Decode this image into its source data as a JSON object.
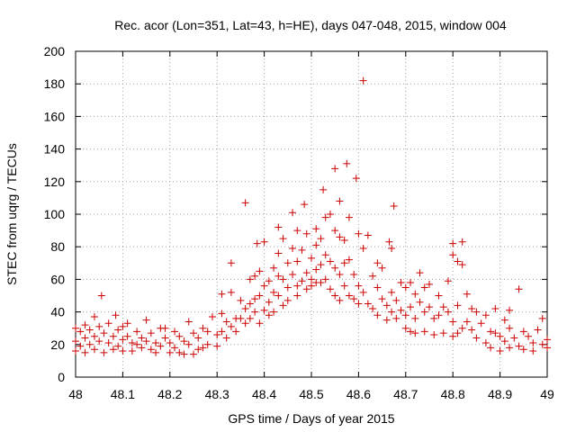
{
  "chart_data": {
    "type": "scatter",
    "title": "Rec. acor (Lon=351, Lat=43, h=HE), days 047-048, 2015, window 004",
    "xlabel": "GPS time / Days of year 2015",
    "ylabel": "STEC from uqrg / TECUs",
    "xlim": [
      48,
      49
    ],
    "ylim": [
      0,
      200
    ],
    "xticks": [
      48,
      48.1,
      48.2,
      48.3,
      48.4,
      48.5,
      48.6,
      48.7,
      48.8,
      48.9,
      49
    ],
    "xtick_labels": [
      "48",
      "48.1",
      "48.2",
      "48.3",
      "48.4",
      "48.5",
      "48.6",
      "48.7",
      "48.8",
      "48.9",
      "49"
    ],
    "yticks": [
      0,
      20,
      40,
      60,
      80,
      100,
      120,
      140,
      160,
      180,
      200
    ],
    "ytick_labels": [
      "0",
      "20",
      "40",
      "60",
      "80",
      "100",
      "120",
      "140",
      "160",
      "180",
      "200"
    ],
    "marker": "+",
    "color": "#cc0000",
    "series": [
      {
        "name": "STEC",
        "points": [
          [
            48.0,
            30
          ],
          [
            48.0,
            22
          ],
          [
            48.0,
            16
          ],
          [
            48.01,
            28
          ],
          [
            48.01,
            19
          ],
          [
            48.02,
            32
          ],
          [
            48.02,
            24
          ],
          [
            48.02,
            15
          ],
          [
            48.03,
            29
          ],
          [
            48.03,
            20
          ],
          [
            48.04,
            37
          ],
          [
            48.04,
            25
          ],
          [
            48.04,
            17
          ],
          [
            48.05,
            31
          ],
          [
            48.05,
            22
          ],
          [
            48.055,
            50
          ],
          [
            48.06,
            27
          ],
          [
            48.06,
            15
          ],
          [
            48.07,
            33
          ],
          [
            48.07,
            21
          ],
          [
            48.08,
            25
          ],
          [
            48.08,
            17
          ],
          [
            48.085,
            38
          ],
          [
            48.09,
            29
          ],
          [
            48.09,
            19
          ],
          [
            48.1,
            31
          ],
          [
            48.1,
            23
          ],
          [
            48.1,
            16
          ],
          [
            48.11,
            33
          ],
          [
            48.11,
            25
          ],
          [
            48.12,
            21
          ],
          [
            48.12,
            16
          ],
          [
            48.13,
            28
          ],
          [
            48.13,
            20
          ],
          [
            48.14,
            24
          ],
          [
            48.14,
            18
          ],
          [
            48.15,
            35
          ],
          [
            48.15,
            22
          ],
          [
            48.16,
            27
          ],
          [
            48.16,
            17
          ],
          [
            48.17,
            21
          ],
          [
            48.17,
            15
          ],
          [
            48.18,
            30
          ],
          [
            48.18,
            19
          ],
          [
            48.19,
            30
          ],
          [
            48.19,
            24
          ],
          [
            48.2,
            21
          ],
          [
            48.2,
            15
          ],
          [
            48.21,
            28
          ],
          [
            48.21,
            18
          ],
          [
            48.22,
            25
          ],
          [
            48.22,
            15
          ],
          [
            48.23,
            22
          ],
          [
            48.23,
            14
          ],
          [
            48.24,
            34
          ],
          [
            48.24,
            20
          ],
          [
            48.25,
            27
          ],
          [
            48.25,
            14
          ],
          [
            48.26,
            24
          ],
          [
            48.26,
            17
          ],
          [
            48.27,
            30
          ],
          [
            48.27,
            18
          ],
          [
            48.28,
            28
          ],
          [
            48.28,
            20
          ],
          [
            48.29,
            37
          ],
          [
            48.3,
            26
          ],
          [
            48.3,
            19
          ],
          [
            48.31,
            51
          ],
          [
            48.31,
            39
          ],
          [
            48.31,
            28
          ],
          [
            48.32,
            34
          ],
          [
            48.32,
            24
          ],
          [
            48.33,
            70
          ],
          [
            48.33,
            52
          ],
          [
            48.33,
            31
          ],
          [
            48.34,
            36
          ],
          [
            48.34,
            28
          ],
          [
            48.35,
            47
          ],
          [
            48.35,
            36
          ],
          [
            48.36,
            107
          ],
          [
            48.36,
            42
          ],
          [
            48.36,
            33
          ],
          [
            48.37,
            60
          ],
          [
            48.37,
            45
          ],
          [
            48.37,
            36
          ],
          [
            48.38,
            62
          ],
          [
            48.38,
            48
          ],
          [
            48.38,
            40
          ],
          [
            48.385,
            82
          ],
          [
            48.39,
            65
          ],
          [
            48.39,
            50
          ],
          [
            48.39,
            33
          ],
          [
            48.4,
            83
          ],
          [
            48.4,
            56
          ],
          [
            48.4,
            41
          ],
          [
            48.41,
            59
          ],
          [
            48.41,
            46
          ],
          [
            48.41,
            38
          ],
          [
            48.42,
            67
          ],
          [
            48.42,
            52
          ],
          [
            48.42,
            40
          ],
          [
            48.43,
            92
          ],
          [
            48.43,
            76
          ],
          [
            48.43,
            62
          ],
          [
            48.43,
            50
          ],
          [
            48.44,
            85
          ],
          [
            48.44,
            60
          ],
          [
            48.44,
            44
          ],
          [
            48.45,
            70
          ],
          [
            48.45,
            55
          ],
          [
            48.45,
            47
          ],
          [
            48.46,
            101
          ],
          [
            48.46,
            79
          ],
          [
            48.46,
            63
          ],
          [
            48.47,
            90
          ],
          [
            48.47,
            71
          ],
          [
            48.47,
            56
          ],
          [
            48.47,
            50
          ],
          [
            48.48,
            78
          ],
          [
            48.48,
            59
          ],
          [
            48.485,
            106
          ],
          [
            48.49,
            88
          ],
          [
            48.49,
            64
          ],
          [
            48.49,
            54
          ],
          [
            48.5,
            73
          ],
          [
            48.5,
            60
          ],
          [
            48.5,
            56
          ],
          [
            48.51,
            91
          ],
          [
            48.51,
            81
          ],
          [
            48.51,
            66
          ],
          [
            48.51,
            58
          ],
          [
            48.52,
            85
          ],
          [
            48.52,
            69
          ],
          [
            48.52,
            58
          ],
          [
            48.525,
            115
          ],
          [
            48.53,
            98
          ],
          [
            48.53,
            75
          ],
          [
            48.53,
            60
          ],
          [
            48.54,
            100
          ],
          [
            48.54,
            71
          ],
          [
            48.54,
            54
          ],
          [
            48.55,
            128
          ],
          [
            48.55,
            90
          ],
          [
            48.55,
            67
          ],
          [
            48.55,
            50
          ],
          [
            48.56,
            108
          ],
          [
            48.56,
            86
          ],
          [
            48.56,
            63
          ],
          [
            48.56,
            47
          ],
          [
            48.57,
            84
          ],
          [
            48.57,
            70
          ],
          [
            48.57,
            56
          ],
          [
            48.575,
            131
          ],
          [
            48.58,
            98
          ],
          [
            48.58,
            72
          ],
          [
            48.58,
            50
          ],
          [
            48.59,
            63
          ],
          [
            48.59,
            48
          ],
          [
            48.595,
            122
          ],
          [
            48.6,
            88
          ],
          [
            48.6,
            56
          ],
          [
            48.6,
            45
          ],
          [
            48.61,
            182
          ],
          [
            48.61,
            79
          ],
          [
            48.61,
            52
          ],
          [
            48.62,
            87
          ],
          [
            48.62,
            45
          ],
          [
            48.63,
            62
          ],
          [
            48.63,
            42
          ],
          [
            48.64,
            70
          ],
          [
            48.64,
            55
          ],
          [
            48.64,
            38
          ],
          [
            48.65,
            67
          ],
          [
            48.65,
            48
          ],
          [
            48.66,
            44
          ],
          [
            48.66,
            35
          ],
          [
            48.665,
            83
          ],
          [
            48.67,
            79
          ],
          [
            48.67,
            52
          ],
          [
            48.67,
            40
          ],
          [
            48.675,
            105
          ],
          [
            48.68,
            47
          ],
          [
            48.68,
            36
          ],
          [
            48.69,
            58
          ],
          [
            48.69,
            41
          ],
          [
            48.7,
            55
          ],
          [
            48.7,
            38
          ],
          [
            48.7,
            30
          ],
          [
            48.71,
            58
          ],
          [
            48.71,
            43
          ],
          [
            48.71,
            28
          ],
          [
            48.72,
            51
          ],
          [
            48.72,
            36
          ],
          [
            48.72,
            27
          ],
          [
            48.73,
            64
          ],
          [
            48.73,
            46
          ],
          [
            48.74,
            55
          ],
          [
            48.74,
            40
          ],
          [
            48.74,
            28
          ],
          [
            48.75,
            57
          ],
          [
            48.75,
            43
          ],
          [
            48.76,
            36
          ],
          [
            48.76,
            26
          ],
          [
            48.77,
            50
          ],
          [
            48.77,
            38
          ],
          [
            48.78,
            43
          ],
          [
            48.78,
            27
          ],
          [
            48.79,
            59
          ],
          [
            48.79,
            40
          ],
          [
            48.8,
            82
          ],
          [
            48.8,
            75
          ],
          [
            48.8,
            34
          ],
          [
            48.8,
            25
          ],
          [
            48.81,
            71
          ],
          [
            48.81,
            44
          ],
          [
            48.81,
            27
          ],
          [
            48.82,
            83
          ],
          [
            48.82,
            69
          ],
          [
            48.82,
            30
          ],
          [
            48.83,
            51
          ],
          [
            48.83,
            34
          ],
          [
            48.84,
            42
          ],
          [
            48.84,
            29
          ],
          [
            48.85,
            40
          ],
          [
            48.85,
            24
          ],
          [
            48.86,
            33
          ],
          [
            48.87,
            38
          ],
          [
            48.87,
            21
          ],
          [
            48.88,
            28
          ],
          [
            48.88,
            18
          ],
          [
            48.89,
            42
          ],
          [
            48.89,
            27
          ],
          [
            48.9,
            25
          ],
          [
            48.9,
            16
          ],
          [
            48.91,
            35
          ],
          [
            48.91,
            22
          ],
          [
            48.92,
            41
          ],
          [
            48.92,
            30
          ],
          [
            48.92,
            18
          ],
          [
            48.93,
            24
          ],
          [
            48.94,
            54
          ],
          [
            48.94,
            19
          ],
          [
            48.95,
            28
          ],
          [
            48.95,
            17
          ],
          [
            48.96,
            25
          ],
          [
            48.97,
            21
          ],
          [
            48.97,
            16
          ],
          [
            48.98,
            29
          ],
          [
            48.99,
            36
          ],
          [
            48.99,
            20
          ],
          [
            49.0,
            23
          ],
          [
            49.0,
            18
          ]
        ]
      }
    ]
  }
}
